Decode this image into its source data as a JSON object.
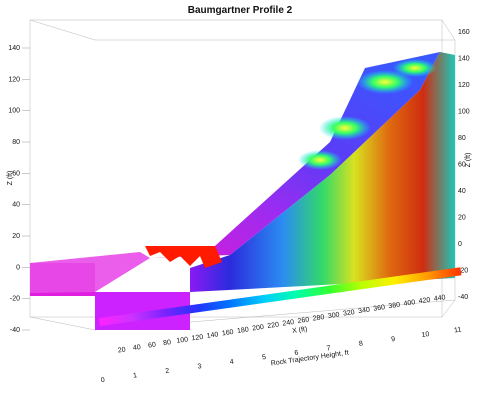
{
  "chart_data": {
    "type": "surface-3d",
    "title": "Baumgartner Profile 2",
    "z_axis_label": "Z (ft)",
    "x_axis_label": "X (ft)",
    "colorbar_label": "Rock Trajectory Height, ft",
    "left_z_ticks": [
      "140",
      "120",
      "100",
      "80",
      "60",
      "40",
      "20",
      "0",
      "-20",
      "-40"
    ],
    "right_z_ticks": [
      "160",
      "140",
      "120",
      "100",
      "80",
      "60",
      "40",
      "20",
      "0",
      "-20",
      "-40"
    ],
    "x_ticks": [
      "20",
      "40",
      "60",
      "80",
      "100",
      "120",
      "140",
      "160",
      "180",
      "200",
      "220",
      "240",
      "260",
      "280",
      "300",
      "320",
      "340",
      "360",
      "380",
      "400",
      "420",
      "440"
    ],
    "colorbar": {
      "min": 0,
      "max": 11,
      "ticks": [
        "0",
        "1",
        "2",
        "3",
        "4",
        "5",
        "6",
        "7",
        "8",
        "9",
        "10",
        "11"
      ],
      "colors": [
        "#ff22ff",
        "#cc33ff",
        "#7a22ff",
        "#2233ff",
        "#0077ff",
        "#00ccff",
        "#00ffaa",
        "#33ff33",
        "#bbff00",
        "#ffee00",
        "#ff9900",
        "#ff3300"
      ]
    },
    "profile": [
      {
        "x": 0,
        "z": 0
      },
      {
        "x": 95,
        "z": 0
      },
      {
        "x": 150,
        "z": 10
      },
      {
        "x": 200,
        "z": 30
      },
      {
        "x": 250,
        "z": 55
      },
      {
        "x": 300,
        "z": 85
      },
      {
        "x": 350,
        "z": 115
      },
      {
        "x": 400,
        "z": 135
      },
      {
        "x": 440,
        "z": 145
      }
    ],
    "barrier": {
      "x_start": 95,
      "x_end": 150,
      "color": "#ff2200"
    }
  }
}
